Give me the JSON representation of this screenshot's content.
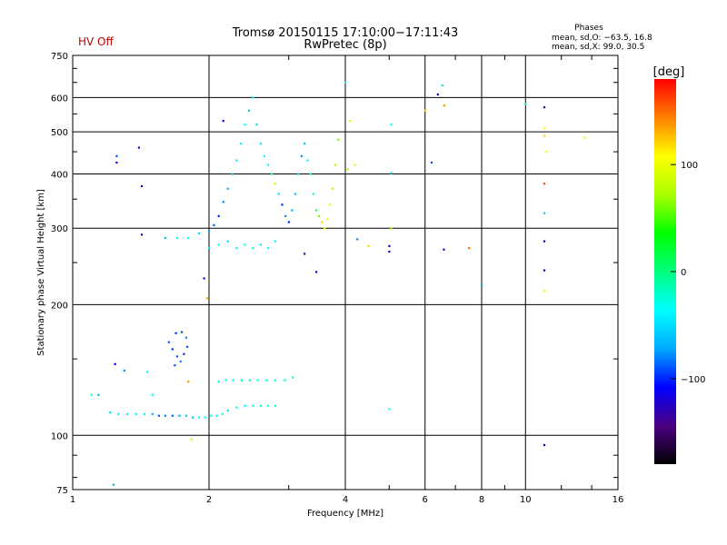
{
  "header": {
    "status": "HV Off",
    "title_line1": "Tromsø 20150115 17:10:00−17:11:43",
    "title_line2": "RwPretec (8p)",
    "phase_heading": "Phases",
    "phase_line1": "mean, sd,O: −63.5, 16.8",
    "phase_line2": "mean, sd,X:  99.0, 30.5"
  },
  "colors": {
    "status": "#c00000",
    "grid": "#000000",
    "colorbar": [
      "#000000",
      "#4b0082",
      "#0000ff",
      "#00aaff",
      "#00ffff",
      "#00ff80",
      "#00ff00",
      "#aaff00",
      "#ffff00",
      "#ff8000",
      "#ff0000"
    ]
  },
  "colorbar": {
    "label": "[deg]",
    "ticks": [
      "100",
      "0",
      "−100"
    ],
    "tick_values": [
      100,
      0,
      -100
    ],
    "range": [
      -180,
      180
    ]
  },
  "chart_data": {
    "type": "scatter",
    "xlabel": "Frequency [MHz]",
    "ylabel": "Stationary phase Virtual Height [km]",
    "xscale": "log",
    "yscale": "log",
    "xlim": [
      1,
      16
    ],
    "ylim": [
      75,
      750
    ],
    "xticks": [
      1,
      2,
      4,
      6,
      8,
      10,
      16
    ],
    "xtick_labels": [
      "1",
      "2",
      "4",
      "6",
      "8",
      "10",
      "16"
    ],
    "yticks": [
      75,
      100,
      200,
      300,
      400,
      500,
      600,
      750
    ],
    "ytick_labels": [
      "75",
      "100",
      "200",
      "300",
      "400",
      "500",
      "600",
      "750"
    ],
    "grid": true,
    "series": [
      {
        "values_format": "[frequency MHz, height km, phase deg]",
        "points": [
          [
            1.1,
            124,
            -20
          ],
          [
            1.21,
            113,
            -80
          ],
          [
            1.21,
            113,
            -30
          ],
          [
            1.26,
            112,
            -30
          ],
          [
            1.32,
            112,
            -25
          ],
          [
            1.38,
            112,
            -30
          ],
          [
            1.44,
            112,
            -40
          ],
          [
            1.5,
            112,
            -70
          ],
          [
            1.55,
            111,
            -90
          ],
          [
            1.6,
            111,
            -80
          ],
          [
            1.66,
            111,
            -90
          ],
          [
            1.72,
            111,
            -70
          ],
          [
            1.78,
            111,
            -60
          ],
          [
            1.84,
            110,
            -60
          ],
          [
            1.9,
            110,
            -35
          ],
          [
            1.96,
            110,
            -30
          ],
          [
            2.02,
            111,
            -30
          ],
          [
            2.08,
            111,
            -40
          ],
          [
            2.14,
            112,
            -30
          ],
          [
            2.2,
            114,
            -50
          ],
          [
            2.3,
            116,
            -30
          ],
          [
            2.4,
            117,
            -40
          ],
          [
            2.5,
            117,
            -25
          ],
          [
            2.6,
            117,
            -20
          ],
          [
            2.7,
            117,
            -30
          ],
          [
            2.8,
            117,
            -25
          ],
          [
            2.1,
            133,
            -25
          ],
          [
            2.18,
            134,
            -30
          ],
          [
            2.26,
            134,
            -35
          ],
          [
            2.36,
            134,
            -20
          ],
          [
            2.46,
            134,
            -25
          ],
          [
            2.56,
            134,
            -30
          ],
          [
            2.68,
            134,
            -25
          ],
          [
            2.8,
            134,
            -30
          ],
          [
            2.94,
            134,
            -20
          ],
          [
            3.06,
            136,
            -20
          ],
          [
            1.8,
            133,
            140
          ],
          [
            1.63,
            164,
            -90
          ],
          [
            1.66,
            158,
            -100
          ],
          [
            1.7,
            152,
            -90
          ],
          [
            1.73,
            148,
            -80
          ],
          [
            1.76,
            154,
            -100
          ],
          [
            1.79,
            160,
            -90
          ],
          [
            1.69,
            172,
            -100
          ],
          [
            1.74,
            173,
            -90
          ],
          [
            1.78,
            168,
            -80
          ],
          [
            1.68,
            145,
            -90
          ],
          [
            1.24,
            146,
            -110
          ],
          [
            1.3,
            141,
            -80
          ],
          [
            1.46,
            140,
            -30
          ],
          [
            1.14,
            124,
            -70
          ],
          [
            1.5,
            124,
            -30
          ],
          [
            1.6,
            285,
            -60
          ],
          [
            1.7,
            285,
            -40
          ],
          [
            1.8,
            285,
            -40
          ],
          [
            1.9,
            292,
            -50
          ],
          [
            2.0,
            295,
            -70
          ],
          [
            2.05,
            305,
            -90
          ],
          [
            2.1,
            320,
            -100
          ],
          [
            2.15,
            345,
            -80
          ],
          [
            2.2,
            370,
            -70
          ],
          [
            2.25,
            400,
            -60
          ],
          [
            2.3,
            430,
            -50
          ],
          [
            2.35,
            470,
            -40
          ],
          [
            2.4,
            520,
            -30
          ],
          [
            2.45,
            560,
            -60
          ],
          [
            2.5,
            600,
            -40
          ],
          [
            2.55,
            520,
            -50
          ],
          [
            2.6,
            470,
            -40
          ],
          [
            2.65,
            440,
            -30
          ],
          [
            2.7,
            420,
            -40
          ],
          [
            2.75,
            400,
            -20
          ],
          [
            2.8,
            380,
            90
          ],
          [
            2.85,
            360,
            -50
          ],
          [
            2.9,
            340,
            -100
          ],
          [
            2.95,
            320,
            -80
          ],
          [
            3.0,
            310,
            -100
          ],
          [
            3.05,
            330,
            -70
          ],
          [
            3.1,
            360,
            -60
          ],
          [
            3.15,
            400,
            -50
          ],
          [
            3.2,
            440,
            -80
          ],
          [
            3.25,
            470,
            -60
          ],
          [
            3.3,
            430,
            -40
          ],
          [
            3.35,
            400,
            -30
          ],
          [
            3.4,
            360,
            -20
          ],
          [
            3.45,
            330,
            10
          ],
          [
            3.5,
            320,
            60
          ],
          [
            3.55,
            310,
            120
          ],
          [
            3.6,
            300,
            100
          ],
          [
            3.65,
            315,
            110
          ],
          [
            3.7,
            340,
            90
          ],
          [
            3.75,
            370,
            80
          ],
          [
            3.8,
            420,
            70
          ],
          [
            3.86,
            480,
            60
          ],
          [
            2.0,
            270,
            -40
          ],
          [
            2.1,
            275,
            -30
          ],
          [
            2.2,
            280,
            -50
          ],
          [
            2.3,
            270,
            -40
          ],
          [
            2.4,
            275,
            -30
          ],
          [
            2.5,
            270,
            -20
          ],
          [
            2.6,
            275,
            -40
          ],
          [
            2.7,
            270,
            -30
          ],
          [
            2.8,
            280,
            -30
          ],
          [
            2.15,
            530,
            -110
          ],
          [
            1.95,
            230,
            -120
          ],
          [
            1.98,
            207,
            130
          ],
          [
            3.25,
            262,
            -140
          ],
          [
            3.45,
            238,
            -110
          ],
          [
            1.25,
            440,
            -90
          ],
          [
            1.25,
            425,
            -110
          ],
          [
            1.4,
            460,
            -120
          ],
          [
            1.42,
            375,
            -110
          ],
          [
            1.42,
            290,
            -120
          ],
          [
            4.0,
            650,
            -40
          ],
          [
            4.05,
            410,
            70
          ],
          [
            4.1,
            530,
            90
          ],
          [
            4.2,
            420,
            100
          ],
          [
            4.25,
            283,
            -80
          ],
          [
            4.5,
            273,
            120
          ],
          [
            5.0,
            273,
            -110
          ],
          [
            5.0,
            265,
            -110
          ],
          [
            5.05,
            402,
            -60
          ],
          [
            5.05,
            520,
            -30
          ],
          [
            5.0,
            115,
            -30
          ],
          [
            5.05,
            300,
            70
          ],
          [
            6.0,
            560,
            120
          ],
          [
            6.2,
            425,
            -90
          ],
          [
            6.4,
            610,
            -120
          ],
          [
            6.55,
            640,
            -10
          ],
          [
            6.6,
            268,
            -120
          ],
          [
            6.62,
            575,
            140
          ],
          [
            7.5,
            270,
            150
          ],
          [
            8.0,
            222,
            -70
          ],
          [
            10.0,
            580,
            -20
          ],
          [
            11.0,
            570,
            -130
          ],
          [
            11.0,
            510,
            110
          ],
          [
            11.0,
            490,
            120
          ],
          [
            11.1,
            450,
            110
          ],
          [
            11.0,
            380,
            160
          ],
          [
            11.0,
            325,
            -60
          ],
          [
            11.0,
            280,
            -110
          ],
          [
            11.0,
            240,
            -110
          ],
          [
            11.0,
            215,
            110
          ],
          [
            11.0,
            95,
            -120
          ],
          [
            13.5,
            485,
            100
          ],
          [
            1.23,
            77,
            -70
          ],
          [
            1.83,
            98,
            80
          ]
        ]
      }
    ]
  }
}
